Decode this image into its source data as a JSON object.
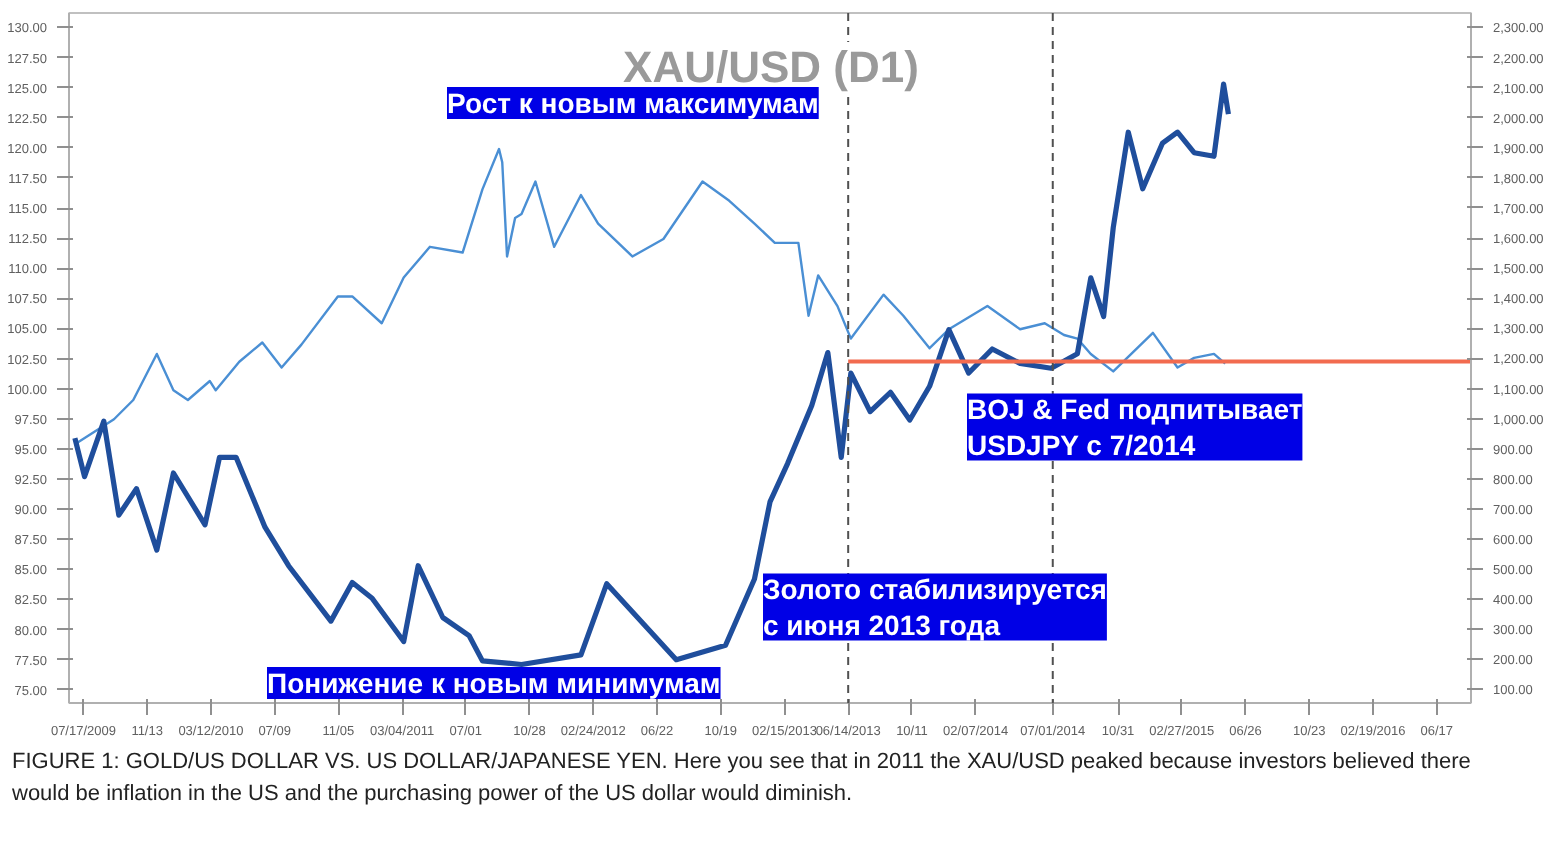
{
  "chart_data": {
    "type": "line",
    "title": "XAU/USD (D1)",
    "xlim": [
      "2009-06-20",
      "2016-08-20"
    ],
    "xticks": [
      {
        "value": "2009-07-17",
        "label": "07/17/2009"
      },
      {
        "value": "2009-11-13",
        "label": "11/13"
      },
      {
        "value": "2010-03-12",
        "label": "03/12/2010"
      },
      {
        "value": "2010-07-09",
        "label": "07/09"
      },
      {
        "value": "2010-11-05",
        "label": "11/05"
      },
      {
        "value": "2011-03-04",
        "label": "03/04/2011"
      },
      {
        "value": "2011-07-01",
        "label": "07/01"
      },
      {
        "value": "2011-10-28",
        "label": "10/28"
      },
      {
        "value": "2012-02-24",
        "label": "02/24/2012"
      },
      {
        "value": "2012-06-22",
        "label": "06/22"
      },
      {
        "value": "2012-10-19",
        "label": "10/19"
      },
      {
        "value": "2013-02-15",
        "label": "02/15/2013"
      },
      {
        "value": "2013-06-14",
        "label": "06/14/2013"
      },
      {
        "value": "2013-10-11",
        "label": "10/11"
      },
      {
        "value": "2014-02-07",
        "label": "02/07/2014"
      },
      {
        "value": "2014-07-01",
        "label": "07/01/2014"
      },
      {
        "value": "2014-10-31",
        "label": "10/31"
      },
      {
        "value": "2015-02-27",
        "label": "02/27/2015"
      },
      {
        "value": "2015-06-26",
        "label": "06/26"
      },
      {
        "value": "2015-10-23",
        "label": "10/23"
      },
      {
        "value": "2016-02-19",
        "label": "02/19/2016"
      },
      {
        "value": "2016-06-17",
        "label": "06/17"
      }
    ],
    "ylim": [
      73.9,
      131.2
    ],
    "yticks": [
      {
        "value": 75,
        "label": "75.00"
      },
      {
        "value": 77.5,
        "label": "77.50"
      },
      {
        "value": 80,
        "label": "80.00"
      },
      {
        "value": 82.5,
        "label": "82.50"
      },
      {
        "value": 85,
        "label": "85.00"
      },
      {
        "value": 87.5,
        "label": "87.50"
      },
      {
        "value": 90,
        "label": "90.00"
      },
      {
        "value": 92.5,
        "label": "92.50"
      },
      {
        "value": 95,
        "label": "95.00"
      },
      {
        "value": 97.5,
        "label": "97.50"
      },
      {
        "value": 100,
        "label": "100.00"
      },
      {
        "value": 102.5,
        "label": "102.50"
      },
      {
        "value": 105,
        "label": "105.00"
      },
      {
        "value": 107.5,
        "label": "107.50"
      },
      {
        "value": 110,
        "label": "110.00"
      },
      {
        "value": 112.5,
        "label": "112.50"
      },
      {
        "value": 115,
        "label": "115.00"
      },
      {
        "value": 117.5,
        "label": "117.50"
      },
      {
        "value": 120,
        "label": "120.00"
      },
      {
        "value": 122.5,
        "label": "122.50"
      },
      {
        "value": 125,
        "label": "125.00"
      },
      {
        "value": 127.5,
        "label": "127.50"
      },
      {
        "value": 130,
        "label": "130.00"
      }
    ],
    "y2lim": [
      55,
      2348
    ],
    "y2ticks": [
      {
        "value": 100,
        "label": "100.00"
      },
      {
        "value": 200,
        "label": "200.00"
      },
      {
        "value": 300,
        "label": "300.00"
      },
      {
        "value": 400,
        "label": "400.00"
      },
      {
        "value": 500,
        "label": "500.00"
      },
      {
        "value": 600,
        "label": "600.00"
      },
      {
        "value": 700,
        "label": "700.00"
      },
      {
        "value": 800,
        "label": "800.00"
      },
      {
        "value": 900,
        "label": "900.00"
      },
      {
        "value": 1000,
        "label": "1,000.00"
      },
      {
        "value": 1100,
        "label": "1,100.00"
      },
      {
        "value": 1200,
        "label": "1,200.00"
      },
      {
        "value": 1300,
        "label": "1,300.00"
      },
      {
        "value": 1400,
        "label": "1,400.00"
      },
      {
        "value": 1500,
        "label": "1,500.00"
      },
      {
        "value": 1600,
        "label": "1,600.00"
      },
      {
        "value": 1700,
        "label": "1,700.00"
      },
      {
        "value": 1800,
        "label": "1,800.00"
      },
      {
        "value": 1900,
        "label": "1,900.00"
      },
      {
        "value": 2000,
        "label": "2,000.00"
      },
      {
        "value": 2100,
        "label": "2,100.00"
      },
      {
        "value": 2200,
        "label": "2,200.00"
      },
      {
        "value": 2300,
        "label": "2,300.00"
      }
    ],
    "series": [
      {
        "color": "#4a8fd4",
        "axis": "y2",
        "x": [
          "2009-07-01",
          "2009-09-12",
          "2009-10-18",
          "2009-12-01",
          "2010-01-01",
          "2010-01-28",
          "2010-03-10",
          "2010-03-21",
          "2010-05-04",
          "2010-06-16",
          "2010-07-22",
          "2010-08-28",
          "2010-11-04",
          "2010-12-01",
          "2011-01-25",
          "2011-03-07",
          "2011-04-25",
          "2011-06-25",
          "2011-08-01",
          "2011-09-01",
          "2011-09-07",
          "2011-09-16",
          "2011-10-01",
          "2011-10-13",
          "2011-11-08",
          "2011-12-13",
          "2012-02-01",
          "2012-03-04",
          "2012-05-07",
          "2012-07-04",
          "2012-09-15",
          "2012-11-04",
          "2012-12-21",
          "2013-01-28",
          "2013-03-13",
          "2013-04-01",
          "2013-04-19",
          "2013-05-25",
          "2013-06-19",
          "2013-08-19",
          "2013-09-25",
          "2013-11-13",
          "2013-12-19",
          "2014-03-01",
          "2014-05-01",
          "2014-06-16",
          "2014-07-22",
          "2014-08-16",
          "2014-09-10",
          "2014-10-22",
          "2015-01-04",
          "2015-02-19",
          "2015-03-22",
          "2015-04-28",
          "2015-05-19"
        ],
        "values": [
          915,
          998,
          1062,
          1215,
          1094,
          1062,
          1125,
          1094,
          1189,
          1253,
          1170,
          1246,
          1406,
          1406,
          1317,
          1469,
          1571,
          1552,
          1762,
          1896,
          1852,
          1539,
          1667,
          1680,
          1788,
          1571,
          1743,
          1648,
          1539,
          1597,
          1788,
          1724,
          1648,
          1584,
          1584,
          1342,
          1476,
          1374,
          1266,
          1412,
          1342,
          1234,
          1297,
          1374,
          1297,
          1317,
          1278,
          1266,
          1215,
          1157,
          1285,
          1170,
          1202,
          1215,
          1183
        ]
      },
      {
        "color": "#1f4e9c",
        "x": [
          "2009-07-01",
          "2009-07-19",
          "2009-08-24",
          "2009-09-21",
          "2009-10-24",
          "2009-12-01",
          "2010-01-01",
          "2010-03-01",
          "2010-03-28",
          "2010-04-28",
          "2010-06-21",
          "2010-08-04",
          "2010-10-22",
          "2010-12-01",
          "2011-01-07",
          "2011-03-07",
          "2011-04-03",
          "2011-05-19",
          "2011-07-07",
          "2011-08-01",
          "2011-10-13",
          "2012-02-01",
          "2012-03-20",
          "2012-07-28",
          "2012-10-28",
          "2012-12-21",
          "2013-01-19",
          "2013-02-21",
          "2013-04-07",
          "2013-05-07",
          "2013-06-01",
          "2013-06-19",
          "2013-07-25",
          "2013-09-01",
          "2013-10-07",
          "2013-11-13",
          "2013-12-19",
          "2014-01-25",
          "2014-03-10",
          "2014-05-01",
          "2014-06-28",
          "2014-08-16",
          "2014-09-10",
          "2014-10-04",
          "2014-10-22",
          "2014-11-19",
          "2014-12-16",
          "2015-01-22",
          "2015-02-19",
          "2015-03-22",
          "2015-04-28",
          "2015-05-16",
          "2015-05-25"
        ],
        "values": [
          95.9,
          92.7,
          97.3,
          89.5,
          91.7,
          86.6,
          93.0,
          88.7,
          94.3,
          94.3,
          88.5,
          85.3,
          80.7,
          83.9,
          82.6,
          79.0,
          85.3,
          81.0,
          79.5,
          77.4,
          77.1,
          77.9,
          83.8,
          77.5,
          78.7,
          84.2,
          90.6,
          93.8,
          98.6,
          103.0,
          94.3,
          101.3,
          98.1,
          99.7,
          97.4,
          100.2,
          104.9,
          101.3,
          103.3,
          102.1,
          101.7,
          102.9,
          109.2,
          106.0,
          113.4,
          121.3,
          116.6,
          120.4,
          121.3,
          119.6,
          119.3,
          125.3,
          122.8
        ]
      },
      {
        "color": "#f26b4f",
        "axis": "y2",
        "x": [
          "2013-06-14",
          "2016-08-20"
        ],
        "values": [
          1190,
          1190
        ]
      }
    ],
    "ref_lines": [
      {
        "axis": "x",
        "value": "2013-06-14",
        "color": "#505050",
        "line_style": "dashed"
      },
      {
        "axis": "x",
        "value": "2014-07-01",
        "color": "#505050",
        "line_style": "dashed"
      }
    ],
    "annotations": [
      "Рост к новым максимумам",
      "Понижение к новым минимумам",
      "Золото стабилизируется\nс июня 2013 года",
      "BOJ & Fed подпитывает\nUSDJPY с 7/2014",
      "FIGURE 1: GOLD/US DOLLAR VS. US DOLLAR/JAPANESE YEN. Here you see that in 2011 the XAU/USD peaked because investors believed there would be inflation in the US and the purchasing power of the US dollar would diminish."
    ]
  }
}
